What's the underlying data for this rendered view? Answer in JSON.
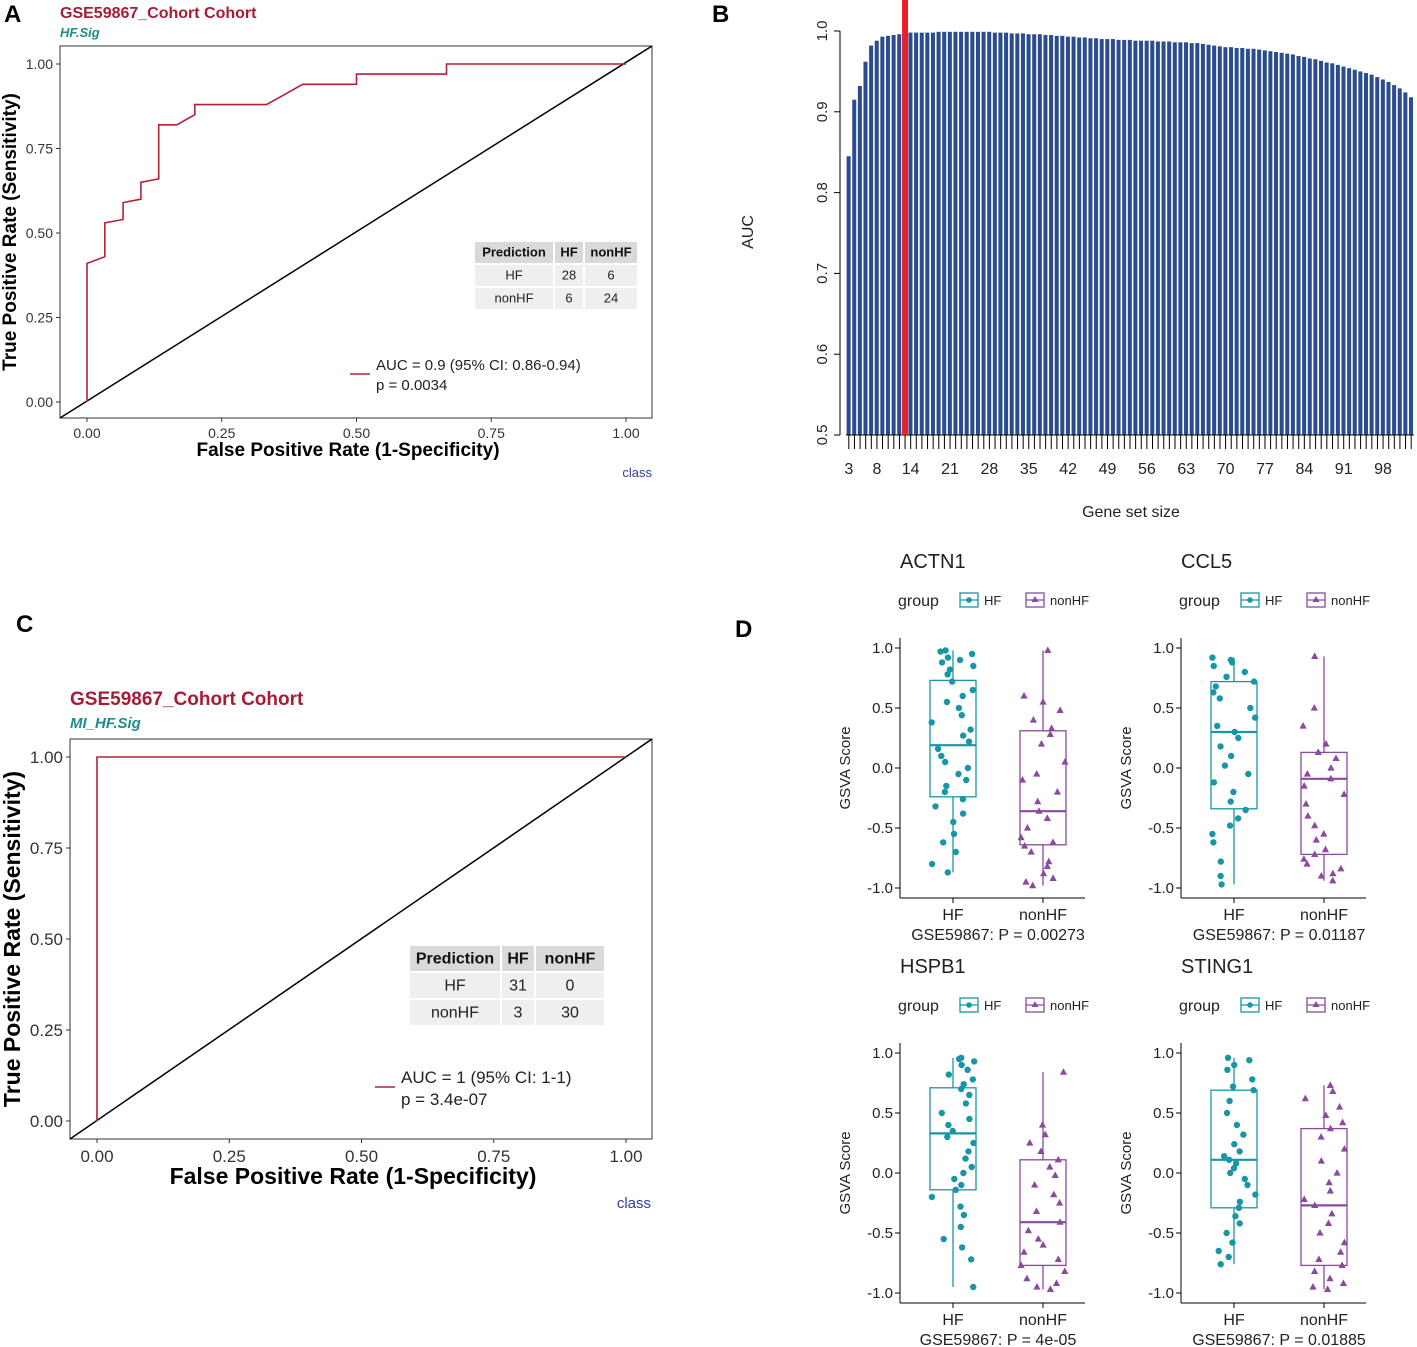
{
  "panel_labels": {
    "A": "A",
    "B": "B",
    "C": "C",
    "D": "D"
  },
  "colors": {
    "roc": "#B22234",
    "title": "#A61C37",
    "subtitle": "#1C8C8C",
    "class": "#2F3E9E",
    "bar": "#2B4D8F",
    "highlight": "#E8202A",
    "hf": "#1996A6",
    "nonhf": "#8A4A9E",
    "table_head": "#D9D9D9",
    "table_row": "#EFEFEF"
  },
  "chart_data": [
    {
      "id": "A",
      "type": "line",
      "title": "GSE59867_Cohort Cohort",
      "subtitle": "HF.Sig",
      "xlabel": "False Positive Rate (1-Specificity)",
      "ylabel": "True Positive Rate (Sensitivity)",
      "xticks": [
        "0.00",
        "0.25",
        "0.50",
        "0.75",
        "1.00"
      ],
      "yticks": [
        "0.00",
        "0.25",
        "0.50",
        "0.75",
        "1.00"
      ],
      "xlim": [
        0,
        1
      ],
      "ylim": [
        0,
        1
      ],
      "roc": [
        [
          0,
          0
        ],
        [
          0,
          0.41
        ],
        [
          0.033,
          0.43
        ],
        [
          0.033,
          0.53
        ],
        [
          0.067,
          0.54
        ],
        [
          0.067,
          0.59
        ],
        [
          0.1,
          0.6
        ],
        [
          0.1,
          0.65
        ],
        [
          0.133,
          0.66
        ],
        [
          0.133,
          0.82
        ],
        [
          0.167,
          0.82
        ],
        [
          0.2,
          0.85
        ],
        [
          0.2,
          0.88
        ],
        [
          0.333,
          0.88
        ],
        [
          0.367,
          0.91
        ],
        [
          0.4,
          0.94
        ],
        [
          0.5,
          0.94
        ],
        [
          0.5,
          0.97
        ],
        [
          0.667,
          0.97
        ],
        [
          0.667,
          1.0
        ],
        [
          1.0,
          1.0
        ]
      ],
      "diagonal": [
        [
          0,
          0
        ],
        [
          1,
          1
        ]
      ],
      "legend": {
        "line1": "AUC = 0.9 (95% CI: 0.86-0.94)",
        "line2": "p = 0.0034"
      },
      "table": {
        "header": [
          "Prediction",
          "HF",
          "nonHF"
        ],
        "rows": [
          [
            "HF",
            "28",
            "6"
          ],
          [
            "nonHF",
            "6",
            "24"
          ]
        ]
      },
      "footer": "class"
    },
    {
      "id": "B",
      "type": "bar",
      "ylabel": "AUC",
      "xlabel": "Gene set size",
      "yticks": [
        "0.5",
        "0.6",
        "0.7",
        "0.8",
        "0.9",
        "1.0"
      ],
      "ylim": [
        0.5,
        1.0
      ],
      "xticks": [
        "3",
        "8",
        "14",
        "21",
        "28",
        "35",
        "42",
        "49",
        "56",
        "63",
        "70",
        "77",
        "84",
        "91",
        "98"
      ],
      "x_start": 3,
      "x_end": 103,
      "highlight_x": 13,
      "values": [
        0.845,
        0.915,
        0.932,
        0.962,
        0.982,
        0.988,
        0.993,
        0.994,
        0.995,
        0.996,
        0.997,
        0.998,
        0.998,
        0.998,
        0.998,
        0.998,
        0.999,
        0.999,
        0.999,
        0.999,
        0.999,
        0.999,
        0.999,
        0.999,
        0.999,
        0.999,
        0.998,
        0.998,
        0.998,
        0.997,
        0.997,
        0.997,
        0.996,
        0.996,
        0.996,
        0.995,
        0.995,
        0.994,
        0.994,
        0.993,
        0.993,
        0.992,
        0.992,
        0.991,
        0.991,
        0.99,
        0.99,
        0.99,
        0.989,
        0.989,
        0.989,
        0.988,
        0.988,
        0.988,
        0.988,
        0.987,
        0.987,
        0.987,
        0.986,
        0.986,
        0.986,
        0.985,
        0.985,
        0.984,
        0.983,
        0.982,
        0.981,
        0.98,
        0.98,
        0.979,
        0.979,
        0.978,
        0.978,
        0.977,
        0.976,
        0.975,
        0.974,
        0.973,
        0.972,
        0.971,
        0.969,
        0.968,
        0.966,
        0.965,
        0.963,
        0.961,
        0.96,
        0.958,
        0.956,
        0.954,
        0.952,
        0.95,
        0.948,
        0.946,
        0.943,
        0.94,
        0.937,
        0.933,
        0.929,
        0.924,
        0.918
      ]
    },
    {
      "id": "C",
      "type": "line",
      "title": "GSE59867_Cohort Cohort",
      "subtitle": "MI_HF.Sig",
      "xlabel": "False Positive Rate (1-Specificity)",
      "ylabel": "True Positive Rate (Sensitivity)",
      "xticks": [
        "0.00",
        "0.25",
        "0.50",
        "0.75",
        "1.00"
      ],
      "yticks": [
        "0.00",
        "0.25",
        "0.50",
        "0.75",
        "1.00"
      ],
      "xlim": [
        0,
        1
      ],
      "ylim": [
        0,
        1
      ],
      "roc": [
        [
          0,
          0
        ],
        [
          0,
          1
        ],
        [
          1,
          1
        ]
      ],
      "diagonal": [
        [
          0,
          0
        ],
        [
          1,
          1
        ]
      ],
      "legend": {
        "line1": "AUC = 1 (95% CI: 1-1)",
        "line2": "p = 3.4e-07"
      },
      "table": {
        "header": [
          "Prediction",
          "HF",
          "nonHF"
        ],
        "rows": [
          [
            "HF",
            "31",
            "0"
          ],
          [
            "nonHF",
            "3",
            "30"
          ]
        ]
      },
      "footer": "class"
    },
    {
      "id": "D",
      "type": "box",
      "legend_title": "group",
      "groups": [
        "HF",
        "nonHF"
      ],
      "ylabel": "GSVA Score",
      "yticks": [
        "-1.0",
        "-0.5",
        "0.0",
        "0.5",
        "1.0"
      ],
      "ylim": [
        -1,
        1
      ],
      "panels": [
        {
          "title": "ACTN1",
          "caption": "GSE59867: P = 0.00273",
          "HF": {
            "q1": -0.24,
            "median": 0.19,
            "q3": 0.73,
            "min": -0.87,
            "max": 0.98,
            "points": [
              0.98,
              0.97,
              0.95,
              0.92,
              0.9,
              0.88,
              0.85,
              0.82,
              0.78,
              0.72,
              0.65,
              0.6,
              0.55,
              0.5,
              0.44,
              0.38,
              0.32,
              0.27,
              0.22,
              0.16,
              0.1,
              0.05,
              0.0,
              -0.05,
              -0.1,
              -0.15,
              -0.2,
              -0.26,
              -0.32,
              -0.38,
              -0.45,
              -0.55,
              -0.62,
              -0.7,
              -0.8,
              -0.87
            ]
          },
          "nonHF": {
            "q1": -0.64,
            "median": -0.36,
            "q3": 0.31,
            "min": -0.98,
            "max": 0.98,
            "points": [
              0.98,
              0.6,
              0.55,
              0.48,
              0.4,
              0.33,
              0.28,
              0.2,
              0.05,
              -0.05,
              -0.1,
              -0.2,
              -0.28,
              -0.36,
              -0.42,
              -0.5,
              -0.58,
              -0.62,
              -0.65,
              -0.7,
              -0.78,
              -0.82,
              -0.88,
              -0.92,
              -0.95,
              -0.98
            ]
          }
        },
        {
          "title": "CCL5",
          "caption": "GSE59867: P = 0.01187",
          "HF": {
            "q1": -0.34,
            "median": 0.3,
            "q3": 0.72,
            "min": -0.97,
            "max": 0.92,
            "points": [
              0.92,
              0.9,
              0.88,
              0.85,
              0.8,
              0.76,
              0.72,
              0.68,
              0.63,
              0.58,
              0.5,
              0.42,
              0.35,
              0.3,
              0.25,
              0.18,
              0.1,
              0.02,
              -0.05,
              -0.12,
              -0.2,
              -0.28,
              -0.35,
              -0.42,
              -0.48,
              -0.55,
              -0.62,
              -0.78,
              -0.9,
              -0.97
            ]
          },
          "nonHF": {
            "q1": -0.72,
            "median": -0.09,
            "q3": 0.13,
            "min": -0.94,
            "max": 0.93,
            "points": [
              0.93,
              0.5,
              0.35,
              0.2,
              0.13,
              0.08,
              0.0,
              -0.05,
              -0.09,
              -0.15,
              -0.22,
              -0.3,
              -0.4,
              -0.48,
              -0.55,
              -0.6,
              -0.68,
              -0.72,
              -0.76,
              -0.8,
              -0.84,
              -0.88,
              -0.9,
              -0.94
            ]
          }
        },
        {
          "title": "HSPB1",
          "caption": "GSE59867: P = 4e-05",
          "HF": {
            "q1": -0.14,
            "median": 0.33,
            "q3": 0.71,
            "min": -0.95,
            "max": 0.96,
            "points": [
              0.96,
              0.95,
              0.93,
              0.9,
              0.86,
              0.82,
              0.78,
              0.74,
              0.7,
              0.65,
              0.58,
              0.5,
              0.45,
              0.4,
              0.35,
              0.3,
              0.25,
              0.18,
              0.12,
              0.05,
              0.0,
              -0.05,
              -0.1,
              -0.14,
              -0.2,
              -0.28,
              -0.35,
              -0.45,
              -0.55,
              -0.62,
              -0.72,
              -0.95
            ]
          },
          "nonHF": {
            "q1": -0.77,
            "median": -0.41,
            "q3": 0.11,
            "min": -0.97,
            "max": 0.84,
            "points": [
              0.84,
              0.4,
              0.32,
              0.25,
              0.18,
              0.11,
              0.05,
              -0.02,
              -0.1,
              -0.18,
              -0.25,
              -0.32,
              -0.41,
              -0.48,
              -0.55,
              -0.6,
              -0.66,
              -0.72,
              -0.77,
              -0.82,
              -0.88,
              -0.92,
              -0.95,
              -0.97
            ]
          }
        },
        {
          "title": "STING1",
          "caption": "GSE59867: P = 0.01885",
          "HF": {
            "q1": -0.29,
            "median": 0.11,
            "q3": 0.69,
            "min": -0.76,
            "max": 0.96,
            "points": [
              0.96,
              0.94,
              0.9,
              0.86,
              0.78,
              0.72,
              0.69,
              0.6,
              0.5,
              0.4,
              0.32,
              0.24,
              0.18,
              0.14,
              0.11,
              0.08,
              0.04,
              0.0,
              -0.05,
              -0.1,
              -0.18,
              -0.24,
              -0.29,
              -0.36,
              -0.42,
              -0.5,
              -0.58,
              -0.65,
              -0.7,
              -0.76
            ]
          },
          "nonHF": {
            "q1": -0.77,
            "median": -0.27,
            "q3": 0.37,
            "min": -0.97,
            "max": 0.73,
            "points": [
              0.73,
              0.68,
              0.62,
              0.55,
              0.48,
              0.42,
              0.37,
              0.3,
              0.2,
              0.1,
              0.0,
              -0.08,
              -0.15,
              -0.22,
              -0.27,
              -0.34,
              -0.42,
              -0.5,
              -0.58,
              -0.66,
              -0.72,
              -0.77,
              -0.82,
              -0.88,
              -0.92,
              -0.95,
              -0.97
            ]
          }
        }
      ]
    }
  ]
}
